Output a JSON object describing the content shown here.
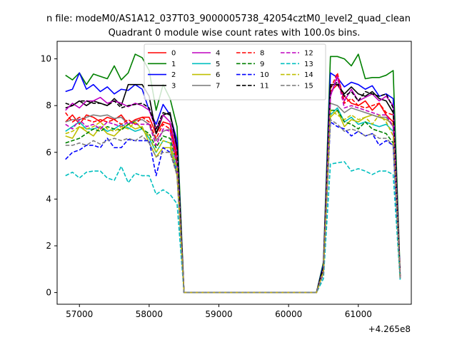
{
  "chart_data": {
    "type": "line",
    "suptitle": "n file: modeM0/AS1A12_037T03_9000005738_42054cztM0_level2_quad_clean",
    "title": "Quadrant 0 module wise count rates with 100.0s bins.",
    "xlabel": "",
    "ylabel": "",
    "offset_label": "+4.265e8",
    "xlim": [
      56680,
      61760
    ],
    "ylim": [
      -0.5,
      10.75
    ],
    "xticks": [
      57000,
      58000,
      59000,
      60000,
      61000
    ],
    "xtick_labels": [
      "57000",
      "58000",
      "59000",
      "60000",
      "61000"
    ],
    "yticks": [
      0,
      2,
      4,
      6,
      8,
      10
    ],
    "ytick_labels": [
      "0",
      "2",
      "4",
      "6",
      "8",
      "10"
    ],
    "grid": false,
    "legend": {
      "position": "top-center",
      "columns": 4
    },
    "x": [
      56800,
      56900,
      57000,
      57100,
      57200,
      57300,
      57400,
      57500,
      57600,
      57700,
      57800,
      57900,
      58000,
      58100,
      58200,
      58300,
      58400,
      58500,
      60400,
      60500,
      60600,
      60700,
      60800,
      60900,
      61000,
      61100,
      61200,
      61300,
      61400,
      61500,
      61600
    ],
    "series": [
      {
        "name": "0",
        "color": "#ff0000",
        "dash": "solid",
        "values": [
          7.3,
          7.6,
          7.2,
          7.6,
          7.5,
          7.3,
          7.5,
          7.4,
          7.6,
          7.2,
          7.4,
          7.5,
          7.5,
          6.8,
          7.3,
          7.2,
          5.8,
          0,
          0,
          1.0,
          8.6,
          8.9,
          8.4,
          8.1,
          8.0,
          8.2,
          7.8,
          8.1,
          7.6,
          7.3,
          0.7
        ]
      },
      {
        "name": "1",
        "color": "#008000",
        "dash": "solid",
        "values": [
          9.3,
          9.1,
          9.4,
          8.9,
          9.35,
          9.25,
          9.15,
          9.7,
          9.1,
          9.4,
          10.2,
          10.05,
          9.5,
          7.8,
          8.9,
          8.3,
          7.1,
          0,
          0,
          1.3,
          10.1,
          10.1,
          10.0,
          9.7,
          10.2,
          9.15,
          9.2,
          9.2,
          9.3,
          9.5,
          0.8
        ]
      },
      {
        "name": "2",
        "color": "#0000ff",
        "dash": "solid",
        "values": [
          8.6,
          8.7,
          9.4,
          8.7,
          8.9,
          8.6,
          8.8,
          8.5,
          8.7,
          8.65,
          8.9,
          8.7,
          7.8,
          7.2,
          8.05,
          7.6,
          6.5,
          0,
          0,
          1.2,
          9.4,
          9.2,
          8.8,
          9.0,
          8.9,
          8.7,
          8.85,
          8.4,
          8.5,
          8.3,
          0.75
        ]
      },
      {
        "name": "3",
        "color": "#000000",
        "dash": "solid",
        "values": [
          7.9,
          8.0,
          8.2,
          8.0,
          8.2,
          8.1,
          8.0,
          8.3,
          8.0,
          8.9,
          8.9,
          8.9,
          8.4,
          6.8,
          7.6,
          7.7,
          6.2,
          0,
          0,
          1.1,
          8.9,
          8.9,
          8.5,
          8.8,
          8.5,
          8.4,
          8.6,
          8.3,
          8.2,
          7.7,
          0.7
        ]
      },
      {
        "name": "4",
        "color": "#bf00bf",
        "dash": "solid",
        "values": [
          7.8,
          8.1,
          7.9,
          8.2,
          8.2,
          8.35,
          8.1,
          8.2,
          8.1,
          7.95,
          8.1,
          8.0,
          7.8,
          7.0,
          7.6,
          7.3,
          6.0,
          0,
          0,
          1.0,
          8.4,
          9.3,
          8.2,
          8.7,
          8.2,
          8.35,
          8.5,
          8.2,
          8.4,
          8.0,
          0.7
        ]
      },
      {
        "name": "5",
        "color": "#00bfbf",
        "dash": "solid",
        "values": [
          6.9,
          7.1,
          7.3,
          7.0,
          7.0,
          7.1,
          6.9,
          7.0,
          7.2,
          7.05,
          6.9,
          7.0,
          6.6,
          6.0,
          6.5,
          6.4,
          5.2,
          0,
          0,
          0.9,
          7.6,
          7.9,
          7.3,
          7.5,
          7.2,
          7.3,
          7.2,
          7.1,
          7.2,
          6.9,
          0.6
        ]
      },
      {
        "name": "6",
        "color": "#bfbf00",
        "dash": "solid",
        "values": [
          6.7,
          6.6,
          7.1,
          6.9,
          6.7,
          7.1,
          6.8,
          6.7,
          7.0,
          7.2,
          7.0,
          7.1,
          6.4,
          5.8,
          6.2,
          6.2,
          5.0,
          0,
          0,
          0.9,
          7.5,
          7.8,
          7.1,
          7.4,
          7.3,
          7.5,
          7.6,
          7.5,
          7.4,
          7.2,
          0.6
        ]
      },
      {
        "name": "7",
        "color": "#808080",
        "dash": "solid",
        "values": [
          7.3,
          7.4,
          7.4,
          7.5,
          7.6,
          7.55,
          7.6,
          7.45,
          7.5,
          7.2,
          7.35,
          7.4,
          7.2,
          6.5,
          6.9,
          7.0,
          5.6,
          0,
          0,
          1.0,
          8.1,
          8.0,
          7.7,
          7.9,
          7.8,
          7.7,
          7.6,
          7.5,
          7.5,
          7.1,
          0.65
        ]
      },
      {
        "name": "8",
        "color": "#ff0000",
        "dash": "dashed",
        "values": [
          7.7,
          7.3,
          7.5,
          7.4,
          7.3,
          7.4,
          7.3,
          7.4,
          7.2,
          7.4,
          7.2,
          7.5,
          7.3,
          6.6,
          7.2,
          7.0,
          5.6,
          0,
          0,
          1.0,
          8.7,
          9.4,
          8.1,
          8.3,
          8.0,
          7.9,
          8.0,
          8.1,
          7.7,
          7.6,
          0.7
        ]
      },
      {
        "name": "9",
        "color": "#008000",
        "dash": "dashed",
        "values": [
          6.4,
          6.5,
          6.6,
          6.8,
          7.0,
          6.9,
          7.1,
          7.0,
          6.95,
          7.2,
          7.3,
          7.0,
          6.8,
          6.2,
          6.7,
          6.6,
          5.5,
          0,
          0,
          0.9,
          7.8,
          7.8,
          7.3,
          7.2,
          7.0,
          7.3,
          7.0,
          6.9,
          6.8,
          6.4,
          0.6
        ]
      },
      {
        "name": "10",
        "color": "#0000ff",
        "dash": "dashed",
        "values": [
          5.7,
          6.0,
          6.1,
          6.3,
          6.3,
          6.2,
          6.6,
          6.2,
          6.2,
          6.55,
          6.5,
          6.5,
          6.5,
          5.0,
          6.2,
          6.0,
          5.1,
          0,
          0,
          0.8,
          7.3,
          7.1,
          7.0,
          6.7,
          6.9,
          6.7,
          6.8,
          6.3,
          6.5,
          6.3,
          0.6
        ]
      },
      {
        "name": "11",
        "color": "#000000",
        "dash": "dashed",
        "values": [
          8.1,
          8.0,
          8.2,
          8.2,
          8.1,
          8.1,
          8.0,
          8.2,
          7.9,
          8.0,
          8.05,
          8.1,
          7.9,
          7.0,
          7.7,
          7.6,
          6.2,
          0,
          0,
          1.1,
          8.8,
          9.0,
          8.4,
          8.6,
          8.2,
          8.6,
          8.5,
          8.4,
          8.5,
          7.9,
          0.7
        ]
      },
      {
        "name": "12",
        "color": "#bf00bf",
        "dash": "dashed",
        "values": [
          7.2,
          7.0,
          7.4,
          7.1,
          7.2,
          7.0,
          7.3,
          7.2,
          7.1,
          7.3,
          7.2,
          7.2,
          7.2,
          6.3,
          7.0,
          6.9,
          5.4,
          0,
          0,
          0.9,
          8.4,
          9.2,
          7.9,
          8.0,
          7.9,
          7.8,
          7.7,
          7.6,
          7.6,
          7.1,
          0.65
        ]
      },
      {
        "name": "13",
        "color": "#00bfbf",
        "dash": "dashed",
        "values": [
          5.0,
          5.15,
          4.9,
          5.15,
          5.2,
          5.2,
          4.9,
          4.8,
          5.4,
          4.7,
          5.1,
          5.0,
          5.0,
          4.2,
          4.4,
          4.2,
          3.8,
          0,
          0,
          0.6,
          5.5,
          5.55,
          5.6,
          5.2,
          5.3,
          5.2,
          5.05,
          5.2,
          5.2,
          5.05,
          0.55
        ]
      },
      {
        "name": "14",
        "color": "#bfbf00",
        "dash": "dashed",
        "values": [
          6.8,
          6.9,
          7.1,
          7.0,
          7.1,
          7.3,
          7.0,
          6.9,
          7.1,
          7.0,
          7.3,
          7.0,
          6.7,
          6.0,
          6.5,
          6.4,
          5.3,
          0,
          0,
          0.9,
          7.8,
          7.6,
          7.4,
          7.6,
          7.4,
          7.5,
          7.2,
          7.6,
          7.3,
          6.7,
          0.6
        ]
      },
      {
        "name": "15",
        "color": "#808080",
        "dash": "dashed",
        "values": [
          6.3,
          6.3,
          6.4,
          6.3,
          6.5,
          6.35,
          6.5,
          6.6,
          6.5,
          6.6,
          6.5,
          6.7,
          6.4,
          5.8,
          6.0,
          6.0,
          5.0,
          0,
          0,
          0.8,
          7.4,
          7.2,
          6.9,
          7.0,
          6.9,
          6.7,
          6.8,
          6.6,
          6.6,
          6.3,
          0.6
        ]
      }
    ]
  }
}
